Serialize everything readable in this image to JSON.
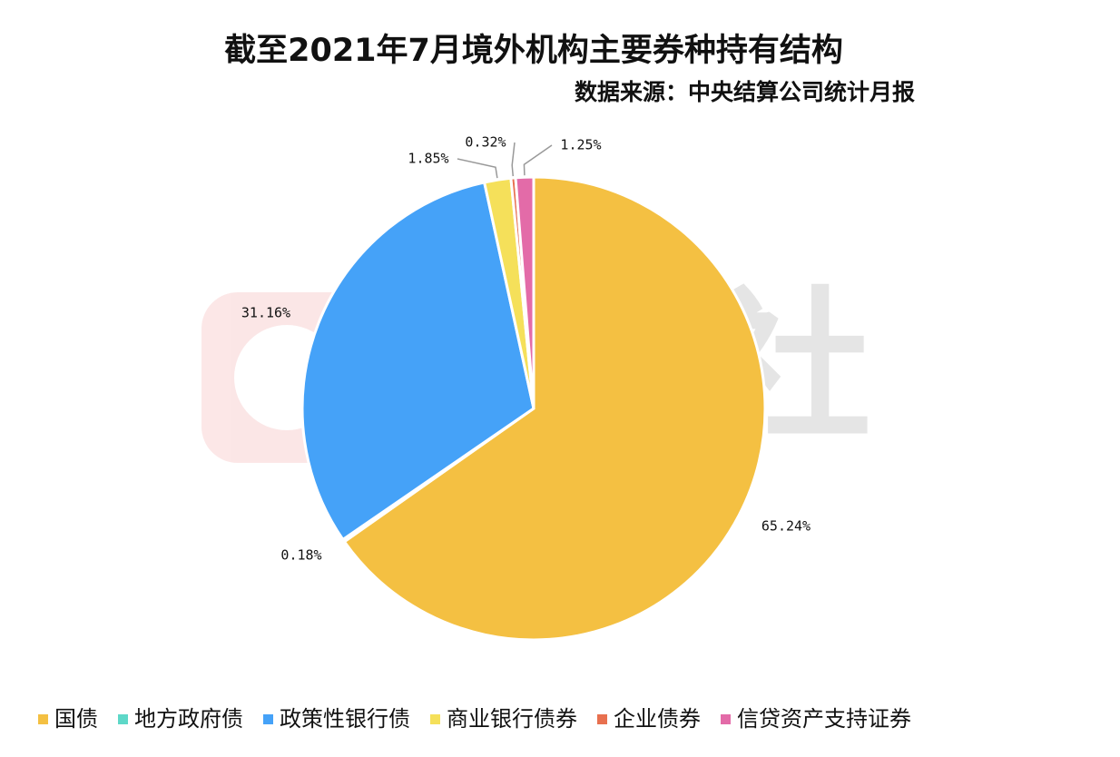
{
  "chart_data": {
    "type": "pie",
    "title": "截至2021年7月境外机构主要券种持有结构",
    "subtitle": "数据来源：中央结算公司统计月报",
    "watermark": "财联社",
    "categories": [
      "国债",
      "地方政府债",
      "政策性银行债",
      "商业银行债券",
      "企业债券",
      "信贷资产支持证券"
    ],
    "values": [
      65.24,
      0.18,
      31.16,
      1.85,
      0.32,
      1.25
    ],
    "value_labels": [
      "65.24%",
      "0.18%",
      "31.16%",
      "1.85%",
      "0.32%",
      "1.25%"
    ],
    "colors": [
      "#F4C042",
      "#5ED8C8",
      "#45A2F8",
      "#F5E05A",
      "#E8704F",
      "#E36BA8"
    ],
    "legend": "bottom"
  }
}
